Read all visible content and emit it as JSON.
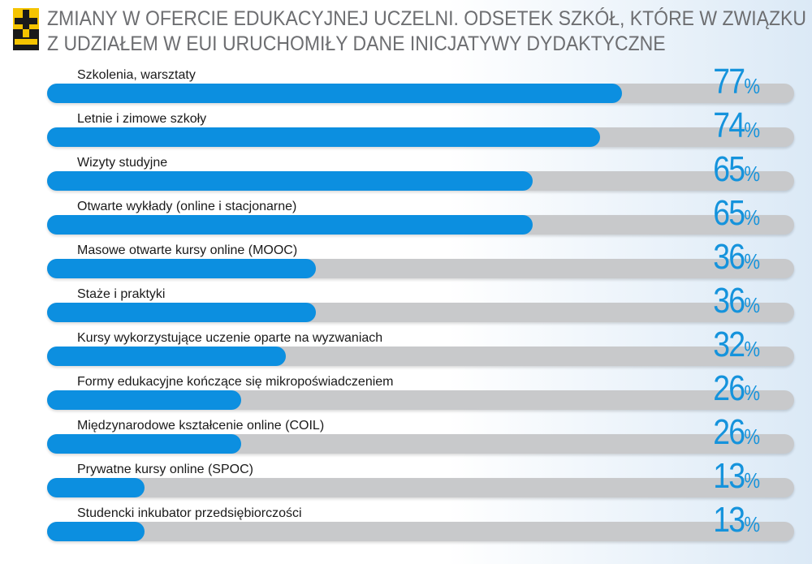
{
  "chart_data": {
    "type": "bar",
    "title_line1": "Zmiany w ofercie edukacyjnej uczelni. Odsetek szkół, które w związku",
    "title_line2": "z udziałem w EUI uruchomiły dane inicjatywy dydaktyczne",
    "categories": [
      "Szkolenia, warsztaty",
      "Letnie i zimowe szkoły",
      "Wizyty studyjne",
      "Otwarte wykłady (online i stacjonarne)",
      "Masowe otwarte kursy online (MOOC)",
      "Staże i praktyki",
      "Kursy wykorzystujące uczenie oparte na wyzwaniach",
      "Formy edukacyjne kończące się mikropoświadczeniem",
      "Międzynarodowe kształcenie online (COIL)",
      "Prywatne kursy online (SPOC)",
      "Studencki inkubator przedsiębiorczości"
    ],
    "values": [
      77,
      74,
      65,
      65,
      36,
      36,
      32,
      26,
      26,
      13,
      13
    ],
    "unit": "%",
    "xlim": [
      0,
      100
    ],
    "colors": {
      "fill": "#0c8fe0",
      "track": "#c8c9cb",
      "value_text": "#1593dc",
      "title_text": "#6d6e71"
    },
    "logo_colors": {
      "top": "#f5c400",
      "bottom": "#1a1a1a"
    }
  }
}
